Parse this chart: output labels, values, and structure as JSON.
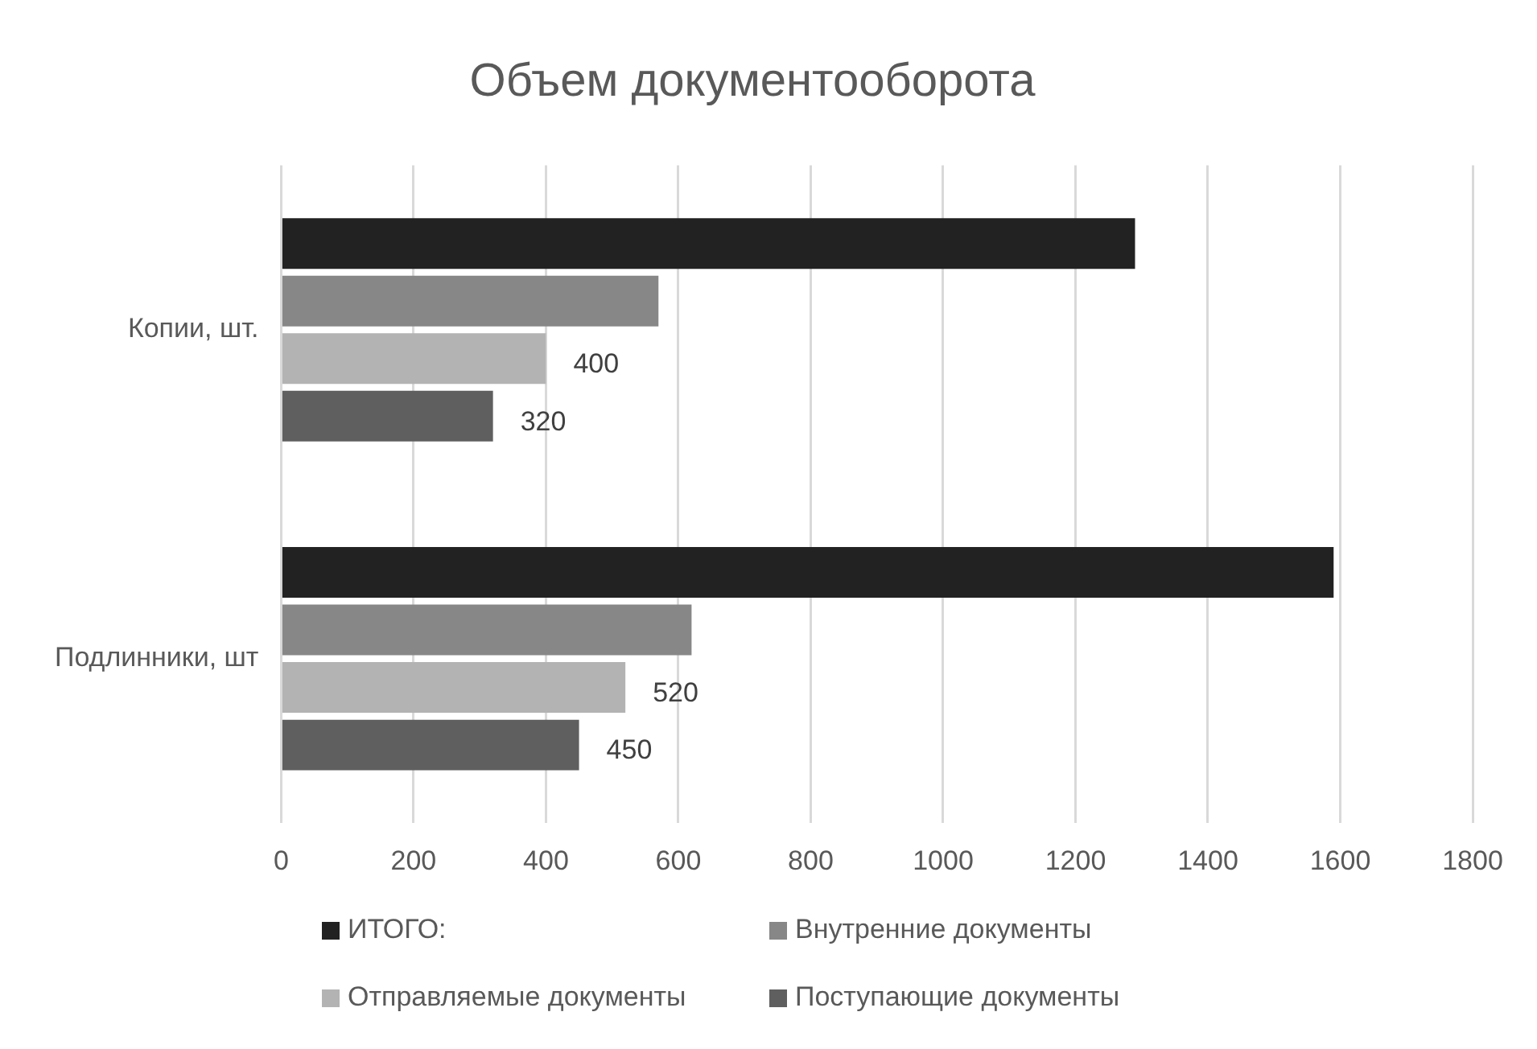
{
  "chart_data": {
    "type": "bar",
    "orientation": "horizontal",
    "title": "Объем документооборота",
    "categories": [
      "Копии, шт.",
      "Подлинники, шт"
    ],
    "series": [
      {
        "name": "ИТОГО:",
        "color": "#222222",
        "values": [
          1290,
          1590
        ]
      },
      {
        "name": "Внутренние документы",
        "color": "#878787",
        "values": [
          570,
          620
        ]
      },
      {
        "name": "Отправляемые документы",
        "color": "#b3b3b3",
        "values": [
          400,
          520
        ],
        "value_labels": [
          "400",
          "520"
        ]
      },
      {
        "name": "Поступающие документы",
        "color": "#5f5f5f",
        "values": [
          320,
          450
        ],
        "value_labels": [
          "320",
          "450"
        ]
      }
    ],
    "xlim": [
      0,
      1800
    ],
    "xticks": [
      0,
      200,
      400,
      600,
      800,
      1000,
      1200,
      1400,
      1600,
      1800
    ],
    "grid": "x",
    "legend": "bottom"
  }
}
